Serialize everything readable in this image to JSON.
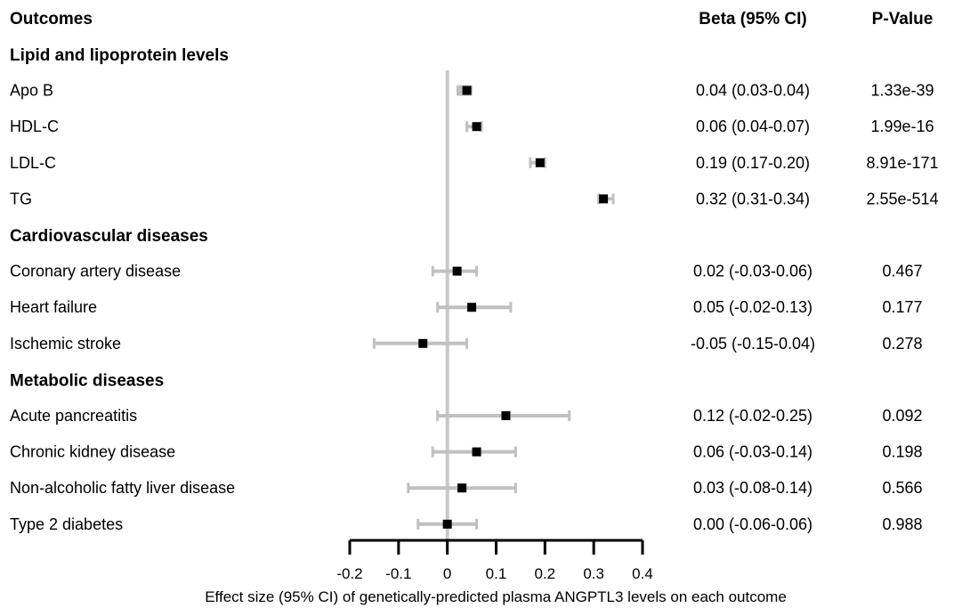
{
  "chart_data": {
    "type": "forest",
    "columns": {
      "outcomes": "Outcomes",
      "beta": "Beta (95% CI)",
      "pvalue": "P-Value"
    },
    "xlabel": "Effect size (95% CI) of genetically-predicted plasma ANGPTL3 levels on each outcome",
    "xlim": [
      -0.2,
      0.4
    ],
    "xticks": [
      "-0.2",
      "-0.1",
      "0",
      "0.1",
      "0.2",
      "0.3",
      "0.4"
    ],
    "reference_line": 0,
    "groups": [
      {
        "name": "Lipid and lipoprotein levels",
        "rows": [
          {
            "label": "Apo B",
            "beta": 0.04,
            "lo": 0.03,
            "hi": 0.04,
            "ci_text": "0.04 (0.03-0.04)",
            "p": "1.33e-39"
          },
          {
            "label": "HDL-C",
            "beta": 0.06,
            "lo": 0.04,
            "hi": 0.07,
            "ci_text": "0.06 (0.04-0.07)",
            "p": "1.99e-16"
          },
          {
            "label": "LDL-C",
            "beta": 0.19,
            "lo": 0.17,
            "hi": 0.2,
            "ci_text": "0.19 (0.17-0.20)",
            "p": "8.91e-171"
          },
          {
            "label": "TG",
            "beta": 0.32,
            "lo": 0.31,
            "hi": 0.34,
            "ci_text": "0.32 (0.31-0.34)",
            "p": "2.55e-514"
          }
        ]
      },
      {
        "name": "Cardiovascular diseases",
        "rows": [
          {
            "label": "Coronary artery disease",
            "beta": 0.02,
            "lo": -0.03,
            "hi": 0.06,
            "ci_text": "0.02 (-0.03-0.06)",
            "p": "0.467"
          },
          {
            "label": "Heart failure",
            "beta": 0.05,
            "lo": -0.02,
            "hi": 0.13,
            "ci_text": "0.05 (-0.02-0.13)",
            "p": "0.177"
          },
          {
            "label": "Ischemic stroke",
            "beta": -0.05,
            "lo": -0.15,
            "hi": 0.04,
            "ci_text": "-0.05 (-0.15-0.04)",
            "p": "0.278"
          }
        ]
      },
      {
        "name": "Metabolic diseases",
        "rows": [
          {
            "label": "Acute pancreatitis",
            "beta": 0.12,
            "lo": -0.02,
            "hi": 0.25,
            "ci_text": "0.12 (-0.02-0.25)",
            "p": "0.092"
          },
          {
            "label": "Chronic kidney disease",
            "beta": 0.06,
            "lo": -0.03,
            "hi": 0.14,
            "ci_text": "0.06 (-0.03-0.14)",
            "p": "0.198"
          },
          {
            "label": "Non-alcoholic fatty liver disease",
            "beta": 0.03,
            "lo": -0.08,
            "hi": 0.14,
            "ci_text": "0.03 (-0.08-0.14)",
            "p": "0.566"
          },
          {
            "label": "Type 2 diabetes",
            "beta": 0.0,
            "lo": -0.06,
            "hi": 0.06,
            "ci_text": "0.00 (-0.06-0.06)",
            "p": "0.988"
          }
        ]
      }
    ],
    "colors": {
      "ci": "#c0c0c0",
      "point": "#000000",
      "reference": "#c8c8c8",
      "axis": "#000000"
    }
  }
}
